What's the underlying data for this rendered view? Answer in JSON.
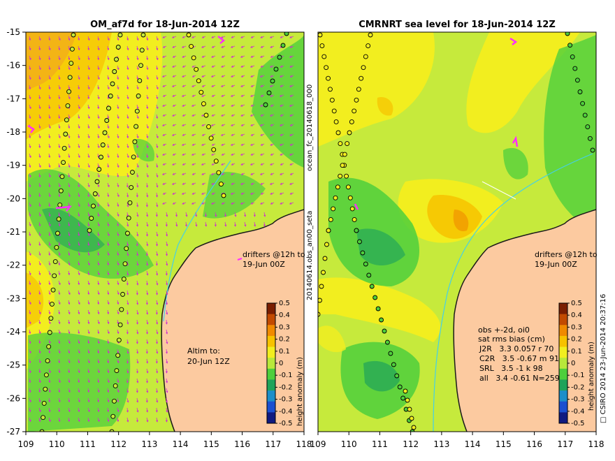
{
  "left_panel": {
    "title": "OM_af7d for 18-Jun-2014 12Z",
    "altim_note": [
      "Altim to:",
      "20-Jun 12Z"
    ],
    "drifters_note": [
      "drifters @12h to",
      "19-Jun 00Z"
    ],
    "colorbar_label": "height anomaly (m)"
  },
  "right_panel": {
    "title": "CMRNRT sea level  for 18-Jun-2014 12Z",
    "drifters_note": [
      "drifters @12h to",
      "19-Jun 00Z"
    ],
    "stats": {
      "header1": "obs +-2d, oi0",
      "header2": "sat rms bias (cm)",
      "rows": [
        "J2R   3.3 0.057 r 70",
        "C2R   3.5 -0.67 m 91",
        "SRL   3.5 -1 k 98",
        "all   3.4 -0.61 N=259"
      ]
    },
    "colorbar_label": "height anomaly (m)"
  },
  "side_labels": {
    "left_vertical": "20140614.obs_an00_seta",
    "left_vertical_top": "ocean_fc_20140618_000",
    "right_vertical": "□ CSIRO 2014  23-Jun-2014 20:37:16"
  },
  "axes": {
    "x_ticks": [
      "109",
      "110",
      "111",
      "112",
      "113",
      "114",
      "115",
      "116",
      "117",
      "118"
    ],
    "y_ticks": [
      "-15",
      "-16",
      "-17",
      "-18",
      "-19",
      "-20",
      "-21",
      "-22",
      "-23",
      "-24",
      "-25",
      "-26",
      "-27"
    ]
  },
  "colorbar": {
    "ticks": [
      "0.5",
      "0.4",
      "0.3",
      "0.2",
      "0.1",
      "0",
      "-0.1",
      "-0.2",
      "-0.3",
      "-0.4",
      "-0.5"
    ],
    "colors": [
      "#7a1e00",
      "#c24a00",
      "#f08a00",
      "#f7c200",
      "#f2ee1f",
      "#b8e83a",
      "#4ecf3c",
      "#1fa35a",
      "#1c8ec9",
      "#1b4fd0",
      "#101a80"
    ]
  },
  "colors": {
    "land": "#fccaa0",
    "ocean_base": "#c6ea3c",
    "coast_cyan": "#44d0e8",
    "drifter": "#ff2dff",
    "arrow": "#cc33cc"
  }
}
